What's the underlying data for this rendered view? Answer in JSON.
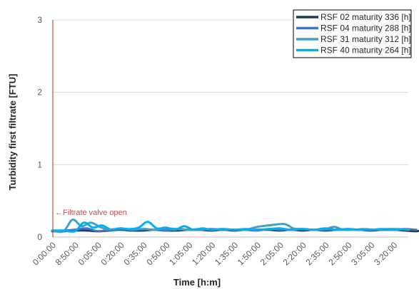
{
  "chart_data": {
    "type": "line",
    "xlabel": "Time [h:m]",
    "ylabel": "Turbidity first filtrate [FTU]",
    "ylim": [
      0,
      3
    ],
    "yticks": [
      "0",
      "1",
      "2",
      "3"
    ],
    "grid": true,
    "legend_position": "top-right",
    "categories": [
      "0:00:00",
      "8:50:00",
      "0:05:00",
      "0:20:00",
      "0:35:00",
      "0:50:00",
      "1:05:00",
      "1:20:00",
      "1:35:00",
      "1:50:00",
      "2:05:00",
      "2:20:00",
      "2:35:00",
      "2:50:00",
      "3:05:00",
      "3:20:00"
    ],
    "series": [
      {
        "name": "RSF 02 maturity 336 [h]",
        "color": "#1F3864",
        "x": [
          0,
          0.5,
          1,
          1.5,
          2,
          2.5,
          3,
          3.5,
          4,
          4.5,
          5,
          5.5,
          6,
          6.5,
          7,
          7.5,
          8,
          8.5,
          9,
          9.5,
          10,
          10.5,
          11,
          11.5,
          12,
          12.5,
          13,
          13.5,
          14,
          14.5,
          15,
          15.5,
          16,
          16.3
        ],
        "values": [
          0.08,
          0.08,
          0.09,
          0.09,
          0.08,
          0.09,
          0.1,
          0.09,
          0.09,
          0.1,
          0.09,
          0.09,
          0.1,
          0.1,
          0.09,
          0.1,
          0.09,
          0.1,
          0.1,
          0.1,
          0.09,
          0.1,
          0.09,
          0.1,
          0.09,
          0.1,
          0.1,
          0.1,
          0.09,
          0.1,
          0.1,
          0.09,
          0.08,
          0.1
        ]
      },
      {
        "name": "RSF 04 maturity 288 [h]",
        "color": "#4472C4",
        "x": [
          0,
          0.5,
          1,
          1.5,
          2,
          2.5,
          3,
          3.5,
          4,
          4.5,
          5,
          5.5,
          6,
          6.5,
          7,
          7.5,
          8,
          8.5,
          9,
          9.5,
          10,
          10.5,
          11,
          11.5,
          12,
          12.5,
          13,
          13.5,
          14,
          14.5,
          15,
          15.5,
          16
        ],
        "values": [
          0.09,
          0.09,
          0.1,
          0.12,
          0.08,
          0.1,
          0.11,
          0.1,
          0.11,
          0.1,
          0.09,
          0.11,
          0.1,
          0.1,
          0.11,
          0.1,
          0.1,
          0.1,
          0.09,
          0.11,
          0.1,
          0.1,
          0.11,
          0.1,
          0.1,
          0.1,
          0.11,
          0.1,
          0.1,
          0.1,
          0.1,
          0.11,
          0.1
        ]
      },
      {
        "name": "RSF 31 maturity 312 [h]",
        "color": "#41A0C8",
        "x": [
          0,
          0.5,
          0.9,
          1.3,
          1.7,
          2.1,
          2.5,
          3,
          3.5,
          4,
          4.5,
          5,
          5.5,
          6,
          6.5,
          7,
          7.5,
          8,
          8.5,
          9,
          9.5,
          10.2,
          10.6,
          11,
          11.5,
          12,
          12.4,
          12.8,
          13.2,
          13.7,
          14.2,
          14.7,
          15.2,
          15.7
        ],
        "values": [
          0.09,
          0.08,
          0.24,
          0.15,
          0.2,
          0.14,
          0.1,
          0.12,
          0.1,
          0.11,
          0.1,
          0.12,
          0.11,
          0.1,
          0.11,
          0.1,
          0.11,
          0.1,
          0.1,
          0.14,
          0.16,
          0.18,
          0.12,
          0.11,
          0.1,
          0.11,
          0.14,
          0.1,
          0.1,
          0.11,
          0.1,
          0.11,
          0.11,
          0.1
        ]
      },
      {
        "name": "RSF 40 maturity 264 [h]",
        "color": "#00B0F0",
        "x": [
          0,
          0.5,
          1,
          1.4,
          1.8,
          2.2,
          2.6,
          3,
          3.4,
          3.8,
          4.2,
          4.6,
          5,
          5.4,
          5.8,
          6.2,
          6.6,
          7,
          7.5,
          8,
          8.5,
          9,
          9.5,
          10,
          10.5,
          11,
          11.5,
          12,
          12.5,
          13,
          13.5,
          14,
          14.5,
          15,
          15.5
        ],
        "values": [
          0.09,
          0.09,
          0.08,
          0.2,
          0.13,
          0.16,
          0.1,
          0.12,
          0.11,
          0.13,
          0.21,
          0.12,
          0.13,
          0.1,
          0.15,
          0.1,
          0.12,
          0.1,
          0.11,
          0.1,
          0.11,
          0.1,
          0.11,
          0.12,
          0.1,
          0.11,
          0.1,
          0.12,
          0.1,
          0.11,
          0.1,
          0.1,
          0.11,
          0.1,
          0.11
        ]
      }
    ],
    "annotations": [
      {
        "text": "←Filtrate valve open",
        "color": "#C0504D",
        "marker_x": 0.0
      }
    ]
  }
}
